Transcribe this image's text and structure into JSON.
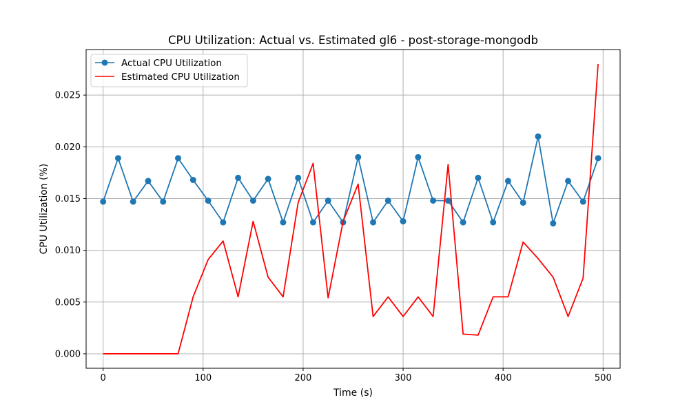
{
  "chart_data": {
    "type": "line",
    "title": "CPU Utilization: Actual vs. Estimated gl6 - post-storage-mongodb",
    "xlabel": "Time (s)",
    "ylabel": "CPU Utilization (%)",
    "xlim": [
      -17,
      517
    ],
    "ylim": [
      -0.0014,
      0.0294
    ],
    "xticks": [
      0,
      100,
      200,
      300,
      400,
      500
    ],
    "yticks": [
      0.0,
      0.005,
      0.01,
      0.015,
      0.02,
      0.025
    ],
    "xtick_labels": [
      "0",
      "100",
      "200",
      "300",
      "400",
      "500"
    ],
    "ytick_labels": [
      "0.000",
      "0.005",
      "0.010",
      "0.015",
      "0.020",
      "0.025"
    ],
    "grid": true,
    "legend_position": "top-left",
    "x": [
      0,
      15,
      30,
      45,
      60,
      75,
      90,
      105,
      120,
      135,
      150,
      165,
      180,
      195,
      210,
      225,
      240,
      255,
      270,
      285,
      300,
      315,
      330,
      345,
      360,
      375,
      390,
      405,
      420,
      435,
      450,
      465,
      480,
      495
    ],
    "series": [
      {
        "name": "Actual CPU Utilization",
        "color": "#1f77b4",
        "marker": "circle",
        "values": [
          0.0147,
          0.0189,
          0.0147,
          0.0167,
          0.0147,
          0.0189,
          0.0168,
          0.0148,
          0.0127,
          0.017,
          0.0148,
          0.0169,
          0.0127,
          0.017,
          0.0127,
          0.0148,
          0.0127,
          0.019,
          0.0127,
          0.0148,
          0.0128,
          0.019,
          0.0148,
          0.0148,
          0.0127,
          0.017,
          0.0127,
          0.0167,
          0.0146,
          0.021,
          0.0126,
          0.0167,
          0.0147,
          0.0189
        ]
      },
      {
        "name": "Estimated CPU Utilization",
        "color": "#ff0000",
        "marker": "none",
        "values": [
          0.0,
          0.0,
          0.0,
          0.0,
          0.0,
          0.0,
          0.0055,
          0.0091,
          0.0109,
          0.0055,
          0.0128,
          0.0074,
          0.0055,
          0.0146,
          0.0184,
          0.0054,
          0.0128,
          0.0164,
          0.0036,
          0.0055,
          0.0036,
          0.0055,
          0.0036,
          0.0183,
          0.0019,
          0.0018,
          0.0055,
          0.0055,
          0.0108,
          0.0092,
          0.0074,
          0.0036,
          0.0073,
          0.028
        ]
      }
    ]
  }
}
